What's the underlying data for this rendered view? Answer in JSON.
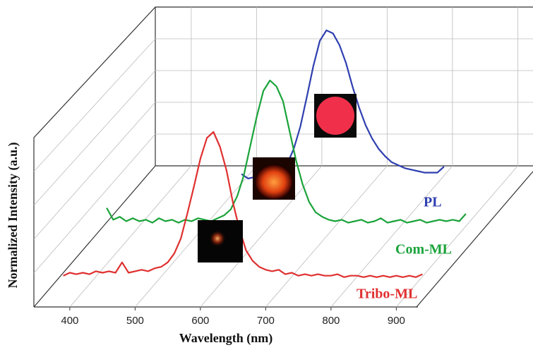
{
  "chart_data": {
    "type": "line",
    "x_label": "Wavelength (nm)",
    "y_label": "Normalized Intensity (a.u.)",
    "xlim": [
      345,
      932
    ],
    "xticks": [
      400,
      500,
      600,
      700,
      800,
      900
    ],
    "ylim": [
      0,
      1.1
    ],
    "grid": true,
    "series": [
      {
        "name": "Tribo-ML",
        "color": "#e03030",
        "x": [
          390,
          400,
          410,
          420,
          430,
          440,
          450,
          460,
          470,
          480,
          490,
          500,
          510,
          520,
          530,
          540,
          550,
          560,
          570,
          580,
          590,
          600,
          610,
          620,
          630,
          640,
          650,
          660,
          670,
          680,
          690,
          700,
          710,
          720,
          730,
          740,
          750,
          760,
          770,
          780,
          790,
          800,
          810,
          820,
          830,
          840,
          850,
          860,
          870,
          880,
          890,
          900,
          910,
          920,
          930,
          940
        ],
        "values": [
          0.03,
          0.05,
          0.04,
          0.05,
          0.04,
          0.06,
          0.05,
          0.06,
          0.05,
          0.12,
          0.05,
          0.06,
          0.07,
          0.06,
          0.08,
          0.09,
          0.12,
          0.18,
          0.28,
          0.45,
          0.63,
          0.82,
          0.96,
          1.0,
          0.9,
          0.74,
          0.52,
          0.34,
          0.2,
          0.13,
          0.09,
          0.07,
          0.06,
          0.07,
          0.04,
          0.05,
          0.03,
          0.04,
          0.03,
          0.04,
          0.03,
          0.03,
          0.04,
          0.02,
          0.03,
          0.03,
          0.02,
          0.03,
          0.02,
          0.03,
          0.02,
          0.03,
          0.02,
          0.03,
          0.02,
          0.04
        ]
      },
      {
        "name": "Com-ML",
        "color": "#1aa33a",
        "x": [
          370,
          380,
          390,
          400,
          410,
          420,
          430,
          440,
          450,
          460,
          470,
          480,
          490,
          500,
          510,
          520,
          530,
          540,
          550,
          560,
          570,
          580,
          590,
          600,
          610,
          620,
          630,
          640,
          650,
          660,
          670,
          680,
          690,
          700,
          710,
          720,
          730,
          740,
          750,
          760,
          770,
          780,
          790,
          800,
          810,
          820,
          830,
          840,
          850,
          860,
          870,
          880,
          890,
          900,
          910,
          920
        ],
        "values": [
          0.14,
          0.06,
          0.08,
          0.05,
          0.07,
          0.05,
          0.06,
          0.04,
          0.07,
          0.05,
          0.06,
          0.04,
          0.06,
          0.05,
          0.07,
          0.06,
          0.05,
          0.07,
          0.09,
          0.13,
          0.22,
          0.36,
          0.56,
          0.76,
          0.93,
          1.0,
          0.96,
          0.86,
          0.66,
          0.46,
          0.3,
          0.18,
          0.11,
          0.08,
          0.06,
          0.05,
          0.06,
          0.04,
          0.05,
          0.06,
          0.04,
          0.05,
          0.07,
          0.04,
          0.05,
          0.06,
          0.04,
          0.05,
          0.06,
          0.04,
          0.05,
          0.06,
          0.05,
          0.06,
          0.05,
          0.1
        ]
      },
      {
        "name": "PL",
        "color": "#2f3fb0",
        "x": [
          490,
          500,
          510,
          520,
          530,
          540,
          550,
          560,
          570,
          580,
          590,
          600,
          610,
          620,
          630,
          640,
          650,
          660,
          670,
          680,
          690,
          700,
          710,
          720,
          730,
          740,
          750,
          760,
          770,
          780,
          790,
          800
        ],
        "values": [
          0.03,
          0.0,
          0.01,
          0.01,
          0.02,
          0.03,
          0.05,
          0.1,
          0.2,
          0.35,
          0.55,
          0.76,
          0.93,
          1.0,
          0.98,
          0.9,
          0.78,
          0.62,
          0.48,
          0.36,
          0.27,
          0.2,
          0.15,
          0.11,
          0.09,
          0.07,
          0.06,
          0.05,
          0.04,
          0.04,
          0.04,
          0.08
        ]
      }
    ]
  }
}
